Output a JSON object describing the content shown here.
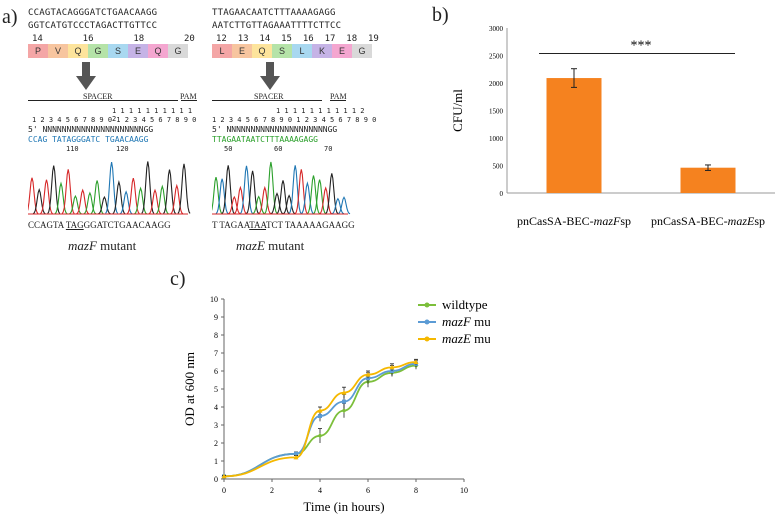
{
  "panels": {
    "a": {
      "label": "a)",
      "left": {
        "seq_top": "CCAGTACAGGGATCTGAACAAGG",
        "seq_bottom": "GGTCATGTCCCTAGACTTGTTCC",
        "aa_numbers": [
          "14",
          "16",
          "18",
          "20"
        ],
        "amino_acids": [
          "P",
          "V",
          "Q",
          "G",
          "S",
          "E",
          "Q",
          "G"
        ],
        "spacer_label": "SPACER",
        "pam_label": "PAM",
        "ruler_tens": "1 1 1 1 1 1 1 1 1 1 2",
        "ruler_units": "1 2 3 4 5 6 7 8 9 0 1 2 3 4 5 6 7 8 9 0",
        "template": "5' NNNNNNNNNNNNNNNNNNNNNGG",
        "read": "CCAG TATAGGGATC TGAACAAGG",
        "trace_ticks": [
          "110",
          "120"
        ],
        "mutant_seq_pre": "CCAGTA ",
        "mutant_seq_tag": "TAG",
        "mutant_seq_post": "GGATCTGAACAAGG",
        "caption_gene": "mazF",
        "caption_rest": " mutant"
      },
      "right": {
        "seq_top": "TTAGAACAATCTTTAAAAGAGG",
        "seq_bottom": "AATCTTGTTAGAAATTTTCTTCC",
        "aa_numbers": [
          "12",
          "13",
          "14",
          "15",
          "16",
          "17",
          "18",
          "19"
        ],
        "amino_acids": [
          "L",
          "E",
          "Q",
          "S",
          "L",
          "K",
          "E",
          "G"
        ],
        "spacer_label": "SPACER",
        "pam_label": "PAM",
        "ruler_tens": "1 1 1 1 1 1 1 1 1 1 2",
        "ruler_units": "1 2 3 4 5 6 7 8 9 0 1 2 3 4 5 6 7 8 9 0",
        "template": "5' NNNNNNNNNNNNNNNNNNNNNGG",
        "read": "TTAGAATAATCTTTAAAAGAGG",
        "trace_ticks": [
          "50",
          "60",
          "70"
        ],
        "mutant_seq_pre": "T TAGAA",
        "mutant_seq_tag": "TAA",
        "mutant_seq_post": "TCT TAAAAAGAAGG",
        "caption_gene": "mazE",
        "caption_rest": " mutant"
      }
    },
    "b": {
      "label": "b)"
    },
    "c": {
      "label": "c)"
    }
  },
  "colors": {
    "bar": "#f5821f",
    "wildtype": "#7cbf3b",
    "mazF": "#5b9bd5",
    "mazE": "#f5b800",
    "aa_palette": [
      "#f4a6a6",
      "#f7c59f",
      "#fde49c",
      "#b5e3a8",
      "#a8d8f0",
      "#c5b3e6",
      "#f4a6d0",
      "#d9d9d9"
    ],
    "trace": [
      "#222222",
      "#d62728",
      "#2ca02c",
      "#1f77b4"
    ]
  },
  "chart_data": [
    {
      "type": "bar",
      "categories": [
        "pnCasSA-BEC-mazFsp",
        "pnCasSA-BEC-mazEsp"
      ],
      "category_parts": [
        {
          "pre": "pnCasSA-BEC-",
          "gene": "mazF",
          "post": "sp"
        },
        {
          "pre": "pnCasSA-BEC-",
          "gene": "mazE",
          "post": "sp"
        }
      ],
      "values": [
        2090,
        460
      ],
      "errors": [
        170,
        50
      ],
      "title": "",
      "xlabel": "",
      "ylabel": "CFU/ml",
      "ylim": [
        0,
        3000
      ],
      "yticks": [
        "0",
        "500",
        "1000",
        "1500",
        "2000",
        "2500",
        "3000"
      ],
      "significance": "***",
      "grid": false
    },
    {
      "type": "line",
      "title": "",
      "xlabel": "Time (in hours)",
      "ylabel": "OD at 600 nm",
      "xlim": [
        0,
        10
      ],
      "ylim": [
        0,
        10
      ],
      "xticks": [
        "0",
        "2",
        "4",
        "6",
        "8",
        "10"
      ],
      "yticks": [
        "0",
        "1",
        "2",
        "3",
        "4",
        "5",
        "6",
        "7",
        "8",
        "9",
        "10"
      ],
      "x": [
        0,
        3,
        4,
        5,
        6,
        7,
        8
      ],
      "series": [
        {
          "name": "wildtype",
          "label_parts": {
            "gene": "",
            "rest": "wildtype"
          },
          "values": [
            0.15,
            1.4,
            2.4,
            3.8,
            5.4,
            5.9,
            6.3
          ],
          "errors": [
            0.05,
            0.1,
            0.4,
            0.4,
            0.3,
            0.2,
            0.2
          ]
        },
        {
          "name": "mazF mutant",
          "label_parts": {
            "gene": "mazF",
            "rest": " mutant"
          },
          "values": [
            0.15,
            1.4,
            3.5,
            4.3,
            5.6,
            6.0,
            6.4
          ],
          "errors": [
            0.05,
            0.1,
            0.3,
            0.4,
            0.3,
            0.3,
            0.2
          ]
        },
        {
          "name": "mazE mutant",
          "label_parts": {
            "gene": "mazE",
            "rest": " mutant"
          },
          "values": [
            0.15,
            1.2,
            3.8,
            4.8,
            5.8,
            6.2,
            6.5
          ],
          "errors": [
            0.05,
            0.1,
            0.2,
            0.3,
            0.2,
            0.2,
            0.15
          ]
        }
      ],
      "legend": "top-center",
      "grid": false
    }
  ]
}
